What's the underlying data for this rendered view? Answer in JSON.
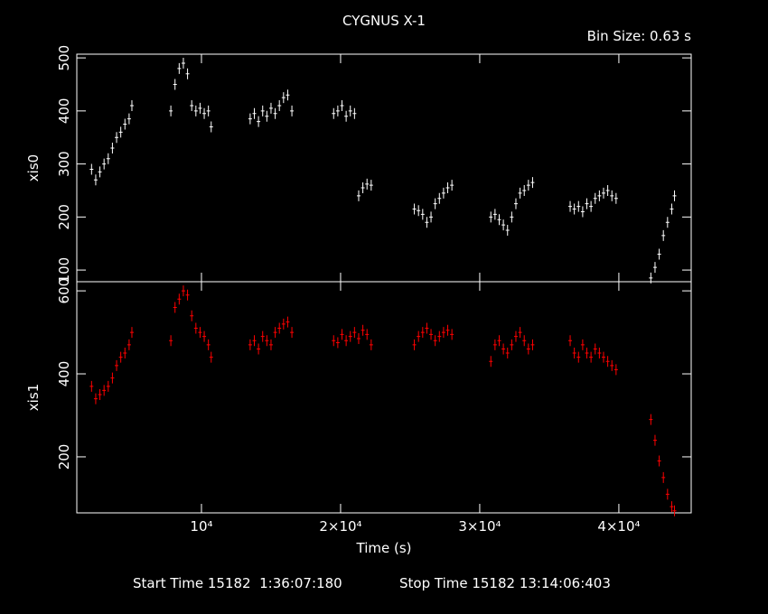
{
  "chart_data": [
    {
      "type": "scatter",
      "title": "CYGNUS X-1",
      "subtitle": "Bin Size: 0.63 s",
      "ylabel": "xis0",
      "xlim": [
        1040,
        45200
      ],
      "xticks": [
        10000,
        20000,
        30000,
        40000
      ],
      "ylim": [
        78,
        507
      ],
      "yticks": [
        100,
        200,
        300,
        400,
        500
      ],
      "series": [
        {
          "name": "xis0",
          "color": "#ffffff",
          "x": [
            2100,
            2400,
            2700,
            3000,
            3300,
            3600,
            3900,
            4200,
            4500,
            4800,
            5000,
            7800,
            8100,
            8400,
            8700,
            9000,
            9300,
            9600,
            9900,
            10200,
            10500,
            10700,
            13500,
            13800,
            14100,
            14400,
            14700,
            15000,
            15300,
            15600,
            15900,
            16200,
            16500,
            19500,
            19800,
            20100,
            20400,
            20700,
            21000,
            21300,
            21600,
            21900,
            22200,
            25300,
            25600,
            25900,
            26200,
            26500,
            26800,
            27100,
            27400,
            27700,
            28000,
            30800,
            31100,
            31400,
            31700,
            32000,
            32300,
            32600,
            32900,
            33200,
            33500,
            33800,
            36500,
            36800,
            37100,
            37400,
            37700,
            38000,
            38300,
            38600,
            38900,
            39200,
            39500,
            39800,
            42300,
            42600,
            42900,
            43200,
            43500,
            43800,
            44000
          ],
          "values": [
            290,
            270,
            285,
            300,
            310,
            330,
            350,
            360,
            375,
            385,
            410,
            400,
            450,
            480,
            490,
            470,
            410,
            400,
            405,
            395,
            400,
            370,
            385,
            395,
            380,
            400,
            390,
            405,
            395,
            410,
            425,
            430,
            400,
            395,
            400,
            410,
            390,
            400,
            395,
            240,
            255,
            262,
            260,
            215,
            212,
            205,
            190,
            200,
            225,
            235,
            245,
            255,
            260,
            200,
            205,
            195,
            185,
            175,
            200,
            225,
            245,
            250,
            260,
            265,
            220,
            215,
            220,
            210,
            225,
            220,
            235,
            240,
            245,
            250,
            240,
            235,
            85,
            105,
            130,
            165,
            190,
            215,
            240
          ]
        }
      ]
    },
    {
      "type": "scatter",
      "ylabel": "xis1",
      "xlabel": "Time (s)",
      "annotations": [
        "Start Time 15182  1:36:07:180",
        "Stop Time 15182 13:14:06:403"
      ],
      "xlim": [
        1040,
        45200
      ],
      "xticks": [
        {
          "value": 10000,
          "label": "10⁴"
        },
        {
          "value": 20000,
          "label": "2×10⁴"
        },
        {
          "value": 30000,
          "label": "3×10⁴"
        },
        {
          "value": 40000,
          "label": "4×10⁴"
        }
      ],
      "ylim": [
        65,
        622
      ],
      "yticks": [
        200,
        400,
        600
      ],
      "series": [
        {
          "name": "xis1",
          "color": "#ff0000",
          "x": [
            2100,
            2400,
            2700,
            3000,
            3300,
            3600,
            3900,
            4200,
            4500,
            4800,
            5000,
            7800,
            8100,
            8400,
            8700,
            9000,
            9300,
            9600,
            9900,
            10200,
            10500,
            10700,
            13500,
            13800,
            14100,
            14400,
            14700,
            15000,
            15300,
            15600,
            15900,
            16200,
            16500,
            19500,
            19800,
            20100,
            20400,
            20700,
            21000,
            21300,
            21600,
            21900,
            22200,
            25300,
            25600,
            25900,
            26200,
            26500,
            26800,
            27100,
            27400,
            27700,
            28000,
            30800,
            31100,
            31400,
            31700,
            32000,
            32300,
            32600,
            32900,
            33200,
            33500,
            33800,
            36500,
            36800,
            37100,
            37400,
            37700,
            38000,
            38300,
            38600,
            38900,
            39200,
            39500,
            39800,
            42300,
            42600,
            42900,
            43200,
            43500,
            43800,
            44000
          ],
          "values": [
            370,
            340,
            350,
            360,
            370,
            390,
            420,
            440,
            450,
            470,
            500,
            480,
            560,
            580,
            600,
            590,
            540,
            510,
            500,
            490,
            470,
            440,
            470,
            480,
            460,
            490,
            480,
            470,
            500,
            510,
            520,
            525,
            500,
            480,
            475,
            495,
            480,
            490,
            500,
            485,
            505,
            495,
            470,
            470,
            490,
            500,
            510,
            495,
            480,
            490,
            500,
            505,
            495,
            430,
            470,
            480,
            460,
            450,
            470,
            490,
            500,
            480,
            460,
            470,
            480,
            450,
            440,
            470,
            450,
            440,
            460,
            450,
            440,
            430,
            420,
            410,
            290,
            240,
            190,
            150,
            110,
            80,
            70
          ]
        }
      ]
    }
  ]
}
